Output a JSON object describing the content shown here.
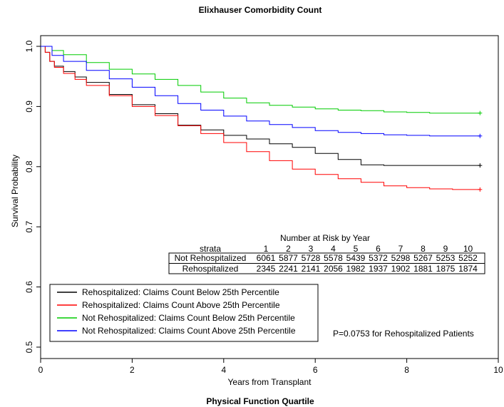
{
  "chart_data": {
    "type": "line",
    "title": "Elixhauser Comorbidity Count",
    "subtitle": "Physical Function Quartile",
    "xlabel": "Years from Transplant",
    "ylabel": "Survival Probability",
    "xlim": [
      0,
      10
    ],
    "ylim": [
      0.5,
      1.0
    ],
    "x_ticks": [
      0,
      2,
      4,
      6,
      8,
      10
    ],
    "y_ticks": [
      0.5,
      0.6,
      0.7,
      0.8,
      0.9,
      1.0
    ],
    "grid": false,
    "legend_position": "bottom-left",
    "annotation": "P=0.0753 for Rehospitalized Patients",
    "series": [
      {
        "name": "Rehospitalized: Claims Count Below 25th Percentile",
        "color": "#000000",
        "x": [
          0,
          0.1,
          0.2,
          0.3,
          0.5,
          0.75,
          1.0,
          1.5,
          2.0,
          2.5,
          3.0,
          3.5,
          4.0,
          4.5,
          5.0,
          5.5,
          6.0,
          6.5,
          7.0,
          7.5,
          8.0,
          9.0,
          9.6
        ],
        "values": [
          1.0,
          0.99,
          0.975,
          0.967,
          0.958,
          0.949,
          0.94,
          0.92,
          0.903,
          0.888,
          0.869,
          0.861,
          0.852,
          0.846,
          0.838,
          0.832,
          0.822,
          0.812,
          0.803,
          0.802,
          0.802,
          0.802,
          0.802
        ]
      },
      {
        "name": "Rehospitalized: Claims Count Above 25th Percentile",
        "color": "#ff0000",
        "x": [
          0,
          0.1,
          0.2,
          0.3,
          0.5,
          0.75,
          1.0,
          1.5,
          2.0,
          2.5,
          3.0,
          3.5,
          4.0,
          4.5,
          5.0,
          5.5,
          6.0,
          6.5,
          7.0,
          7.5,
          8.0,
          8.5,
          9.0,
          9.6
        ],
        "values": [
          1.0,
          0.99,
          0.975,
          0.965,
          0.955,
          0.945,
          0.935,
          0.918,
          0.9,
          0.885,
          0.868,
          0.855,
          0.84,
          0.825,
          0.81,
          0.796,
          0.787,
          0.78,
          0.774,
          0.768,
          0.765,
          0.763,
          0.762,
          0.762
        ]
      },
      {
        "name": "Not Rehospitalized: Claims Count Below 25th Percentile",
        "color": "#00cc00",
        "x": [
          0,
          0.25,
          0.5,
          1.0,
          1.5,
          2.0,
          2.5,
          3.0,
          3.5,
          4.0,
          4.5,
          5.0,
          5.5,
          6.0,
          6.5,
          7.0,
          7.5,
          8.0,
          8.5,
          9.0,
          9.6
        ],
        "values": [
          1.0,
          0.993,
          0.986,
          0.973,
          0.962,
          0.954,
          0.945,
          0.935,
          0.924,
          0.914,
          0.906,
          0.902,
          0.899,
          0.896,
          0.894,
          0.893,
          0.891,
          0.89,
          0.889,
          0.889,
          0.889
        ]
      },
      {
        "name": "Not Rehospitalized: Claims Count Above 25th Percentile",
        "color": "#0000ff",
        "x": [
          0,
          0.25,
          0.5,
          1.0,
          1.5,
          2.0,
          2.5,
          3.0,
          3.5,
          4.0,
          4.5,
          5.0,
          5.5,
          6.0,
          6.5,
          7.0,
          7.5,
          8.0,
          8.5,
          9.0,
          9.6
        ],
        "values": [
          1.0,
          0.985,
          0.975,
          0.96,
          0.946,
          0.932,
          0.918,
          0.905,
          0.894,
          0.884,
          0.876,
          0.87,
          0.865,
          0.86,
          0.857,
          0.855,
          0.853,
          0.852,
          0.851,
          0.851,
          0.851
        ]
      }
    ]
  },
  "risk_table": {
    "title": "Number at Risk by Year",
    "header": "strata",
    "years": [
      "1",
      "2",
      "3",
      "4",
      "5",
      "6",
      "7",
      "8",
      "9",
      "10"
    ],
    "rows": [
      {
        "label": "Not Rehospitalized",
        "values": [
          "6061",
          "5877",
          "5728",
          "5578",
          "5439",
          "5372",
          "5298",
          "5267",
          "5253",
          "5252"
        ]
      },
      {
        "label": "Rehospitalized",
        "values": [
          "2345",
          "2241",
          "2141",
          "2056",
          "1982",
          "1937",
          "1902",
          "1881",
          "1875",
          "1874"
        ]
      }
    ]
  }
}
